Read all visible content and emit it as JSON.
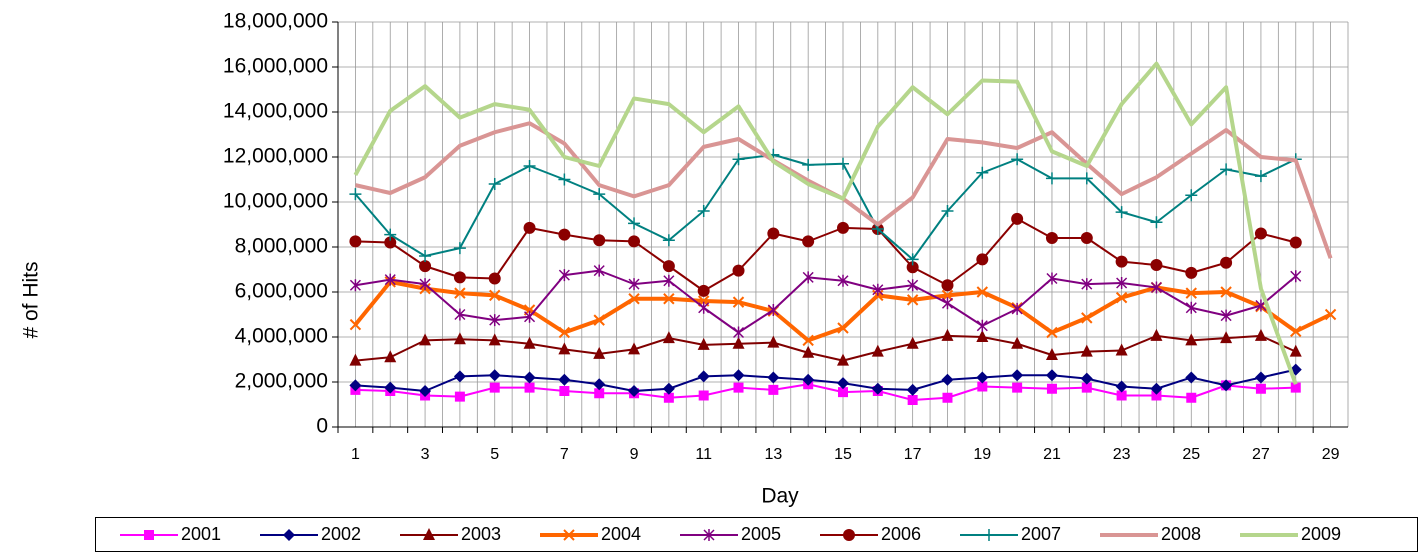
{
  "chart_data": {
    "type": "line",
    "x_label": "Day",
    "y_label": "# of Hits",
    "categories": [
      "1",
      null,
      "3",
      null,
      "5",
      null,
      "7",
      null,
      "9",
      null,
      "11",
      null,
      "13",
      null,
      "15",
      null,
      "17",
      null,
      "19",
      null,
      "21",
      null,
      "23",
      null,
      "25",
      null,
      "27",
      null,
      "29"
    ],
    "ylim": [
      0,
      18000000
    ],
    "yticks": [
      0,
      {
        "value": 2000000,
        "label": "2,000,000"
      },
      {
        "value": 4000000,
        "label": "4,000,000"
      },
      {
        "value": 6000000,
        "label": "6,000,000"
      },
      {
        "value": 8000000,
        "label": "8,000,000"
      },
      {
        "value": 10000000,
        "label": "10,000,000"
      },
      {
        "value": 12000000,
        "label": "12,000,000"
      },
      {
        "value": 14000000,
        "label": "14,000,000"
      },
      {
        "value": 16000000,
        "label": "16,000,000"
      },
      {
        "value": 18000000,
        "label": "18,000,000"
      }
    ],
    "grid": true,
    "legend": "bottom",
    "series": [
      {
        "name": "2001",
        "color": "#ff00ff",
        "marker": "square",
        "width": 2,
        "values": [
          1650000,
          1600000,
          1400000,
          1350000,
          1750000,
          1750000,
          1600000,
          1500000,
          1500000,
          1300000,
          1400000,
          1750000,
          1650000,
          1900000,
          1550000,
          1600000,
          1200000,
          1300000,
          1800000,
          1750000,
          1700000,
          1750000,
          1400000,
          1400000,
          1300000,
          1850000,
          1700000,
          1750000,
          null
        ]
      },
      {
        "name": "2002",
        "color": "#000080",
        "marker": "diamond",
        "width": 2,
        "values": [
          1850000,
          1750000,
          1600000,
          2250000,
          2300000,
          2200000,
          2100000,
          1900000,
          1600000,
          1700000,
          2250000,
          2300000,
          2200000,
          2100000,
          1950000,
          1700000,
          1650000,
          2100000,
          2200000,
          2300000,
          2300000,
          2150000,
          1800000,
          1700000,
          2200000,
          1850000,
          2200000,
          2550000,
          null
        ]
      },
      {
        "name": "2003",
        "color": "#800000",
        "marker": "triangle",
        "width": 2,
        "values": [
          2950000,
          3100000,
          3850000,
          3900000,
          3850000,
          3700000,
          3450000,
          3250000,
          3450000,
          3950000,
          3650000,
          3700000,
          3750000,
          3300000,
          2950000,
          3350000,
          3700000,
          4050000,
          4000000,
          3700000,
          3200000,
          3350000,
          3400000,
          4050000,
          3850000,
          3950000,
          4050000,
          3350000,
          null
        ]
      },
      {
        "name": "2004",
        "color": "#ff6600",
        "marker": "x",
        "width": 4,
        "values": [
          4550000,
          6450000,
          6150000,
          5950000,
          5850000,
          5200000,
          4200000,
          4750000,
          5700000,
          5700000,
          5600000,
          5550000,
          5150000,
          3850000,
          4400000,
          5850000,
          5650000,
          5850000,
          6000000,
          5300000,
          4200000,
          4850000,
          5750000,
          6200000,
          5950000,
          6000000,
          5350000,
          4250000,
          5000000
        ]
      },
      {
        "name": "2005",
        "color": "#800080",
        "marker": "asterisk",
        "width": 2,
        "values": [
          6300000,
          6550000,
          6350000,
          5000000,
          4750000,
          4900000,
          6750000,
          6950000,
          6350000,
          6500000,
          5300000,
          4200000,
          5200000,
          6650000,
          6500000,
          6100000,
          6300000,
          5500000,
          4500000,
          5250000,
          6600000,
          6350000,
          6400000,
          6200000,
          5300000,
          4950000,
          5400000,
          6700000,
          null
        ]
      },
      {
        "name": "2006",
        "color": "#8b0000",
        "marker": "circle",
        "width": 2,
        "values": [
          8250000,
          8200000,
          7150000,
          6650000,
          6600000,
          8850000,
          8550000,
          8300000,
          8250000,
          7150000,
          6050000,
          6950000,
          8600000,
          8250000,
          8850000,
          8800000,
          7100000,
          6300000,
          7450000,
          9250000,
          8400000,
          8400000,
          7350000,
          7200000,
          6850000,
          7300000,
          8600000,
          8200000,
          null
        ]
      },
      {
        "name": "2007",
        "color": "#008080",
        "marker": "plus",
        "width": 2,
        "values": [
          10350000,
          8550000,
          7600000,
          7950000,
          10800000,
          11600000,
          11000000,
          10350000,
          9050000,
          8300000,
          9600000,
          11900000,
          12100000,
          11650000,
          11700000,
          8800000,
          7450000,
          9600000,
          11300000,
          11900000,
          11050000,
          11050000,
          9550000,
          9100000,
          10300000,
          11450000,
          11150000,
          11900000,
          null
        ]
      },
      {
        "name": "2008",
        "color": "#d99594",
        "marker": "none",
        "width": 4,
        "values": [
          10750000,
          10400000,
          11100000,
          12500000,
          13100000,
          13500000,
          12600000,
          10750000,
          10250000,
          10750000,
          12450000,
          12800000,
          11850000,
          10950000,
          10150000,
          9000000,
          10200000,
          12800000,
          12650000,
          12400000,
          13100000,
          11700000,
          10350000,
          11100000,
          12150000,
          13200000,
          12000000,
          11850000,
          7500000
        ]
      },
      {
        "name": "2009",
        "color": "#b5d68c",
        "marker": "none",
        "width": 4,
        "values": [
          11200000,
          14050000,
          15150000,
          13750000,
          14350000,
          14100000,
          12000000,
          11600000,
          14600000,
          14350000,
          13100000,
          14250000,
          11800000,
          10800000,
          10150000,
          13350000,
          15100000,
          13900000,
          15400000,
          15350000,
          12250000,
          11600000,
          14350000,
          16150000,
          13450000,
          15100000,
          6150000,
          1900000,
          null
        ]
      }
    ]
  }
}
